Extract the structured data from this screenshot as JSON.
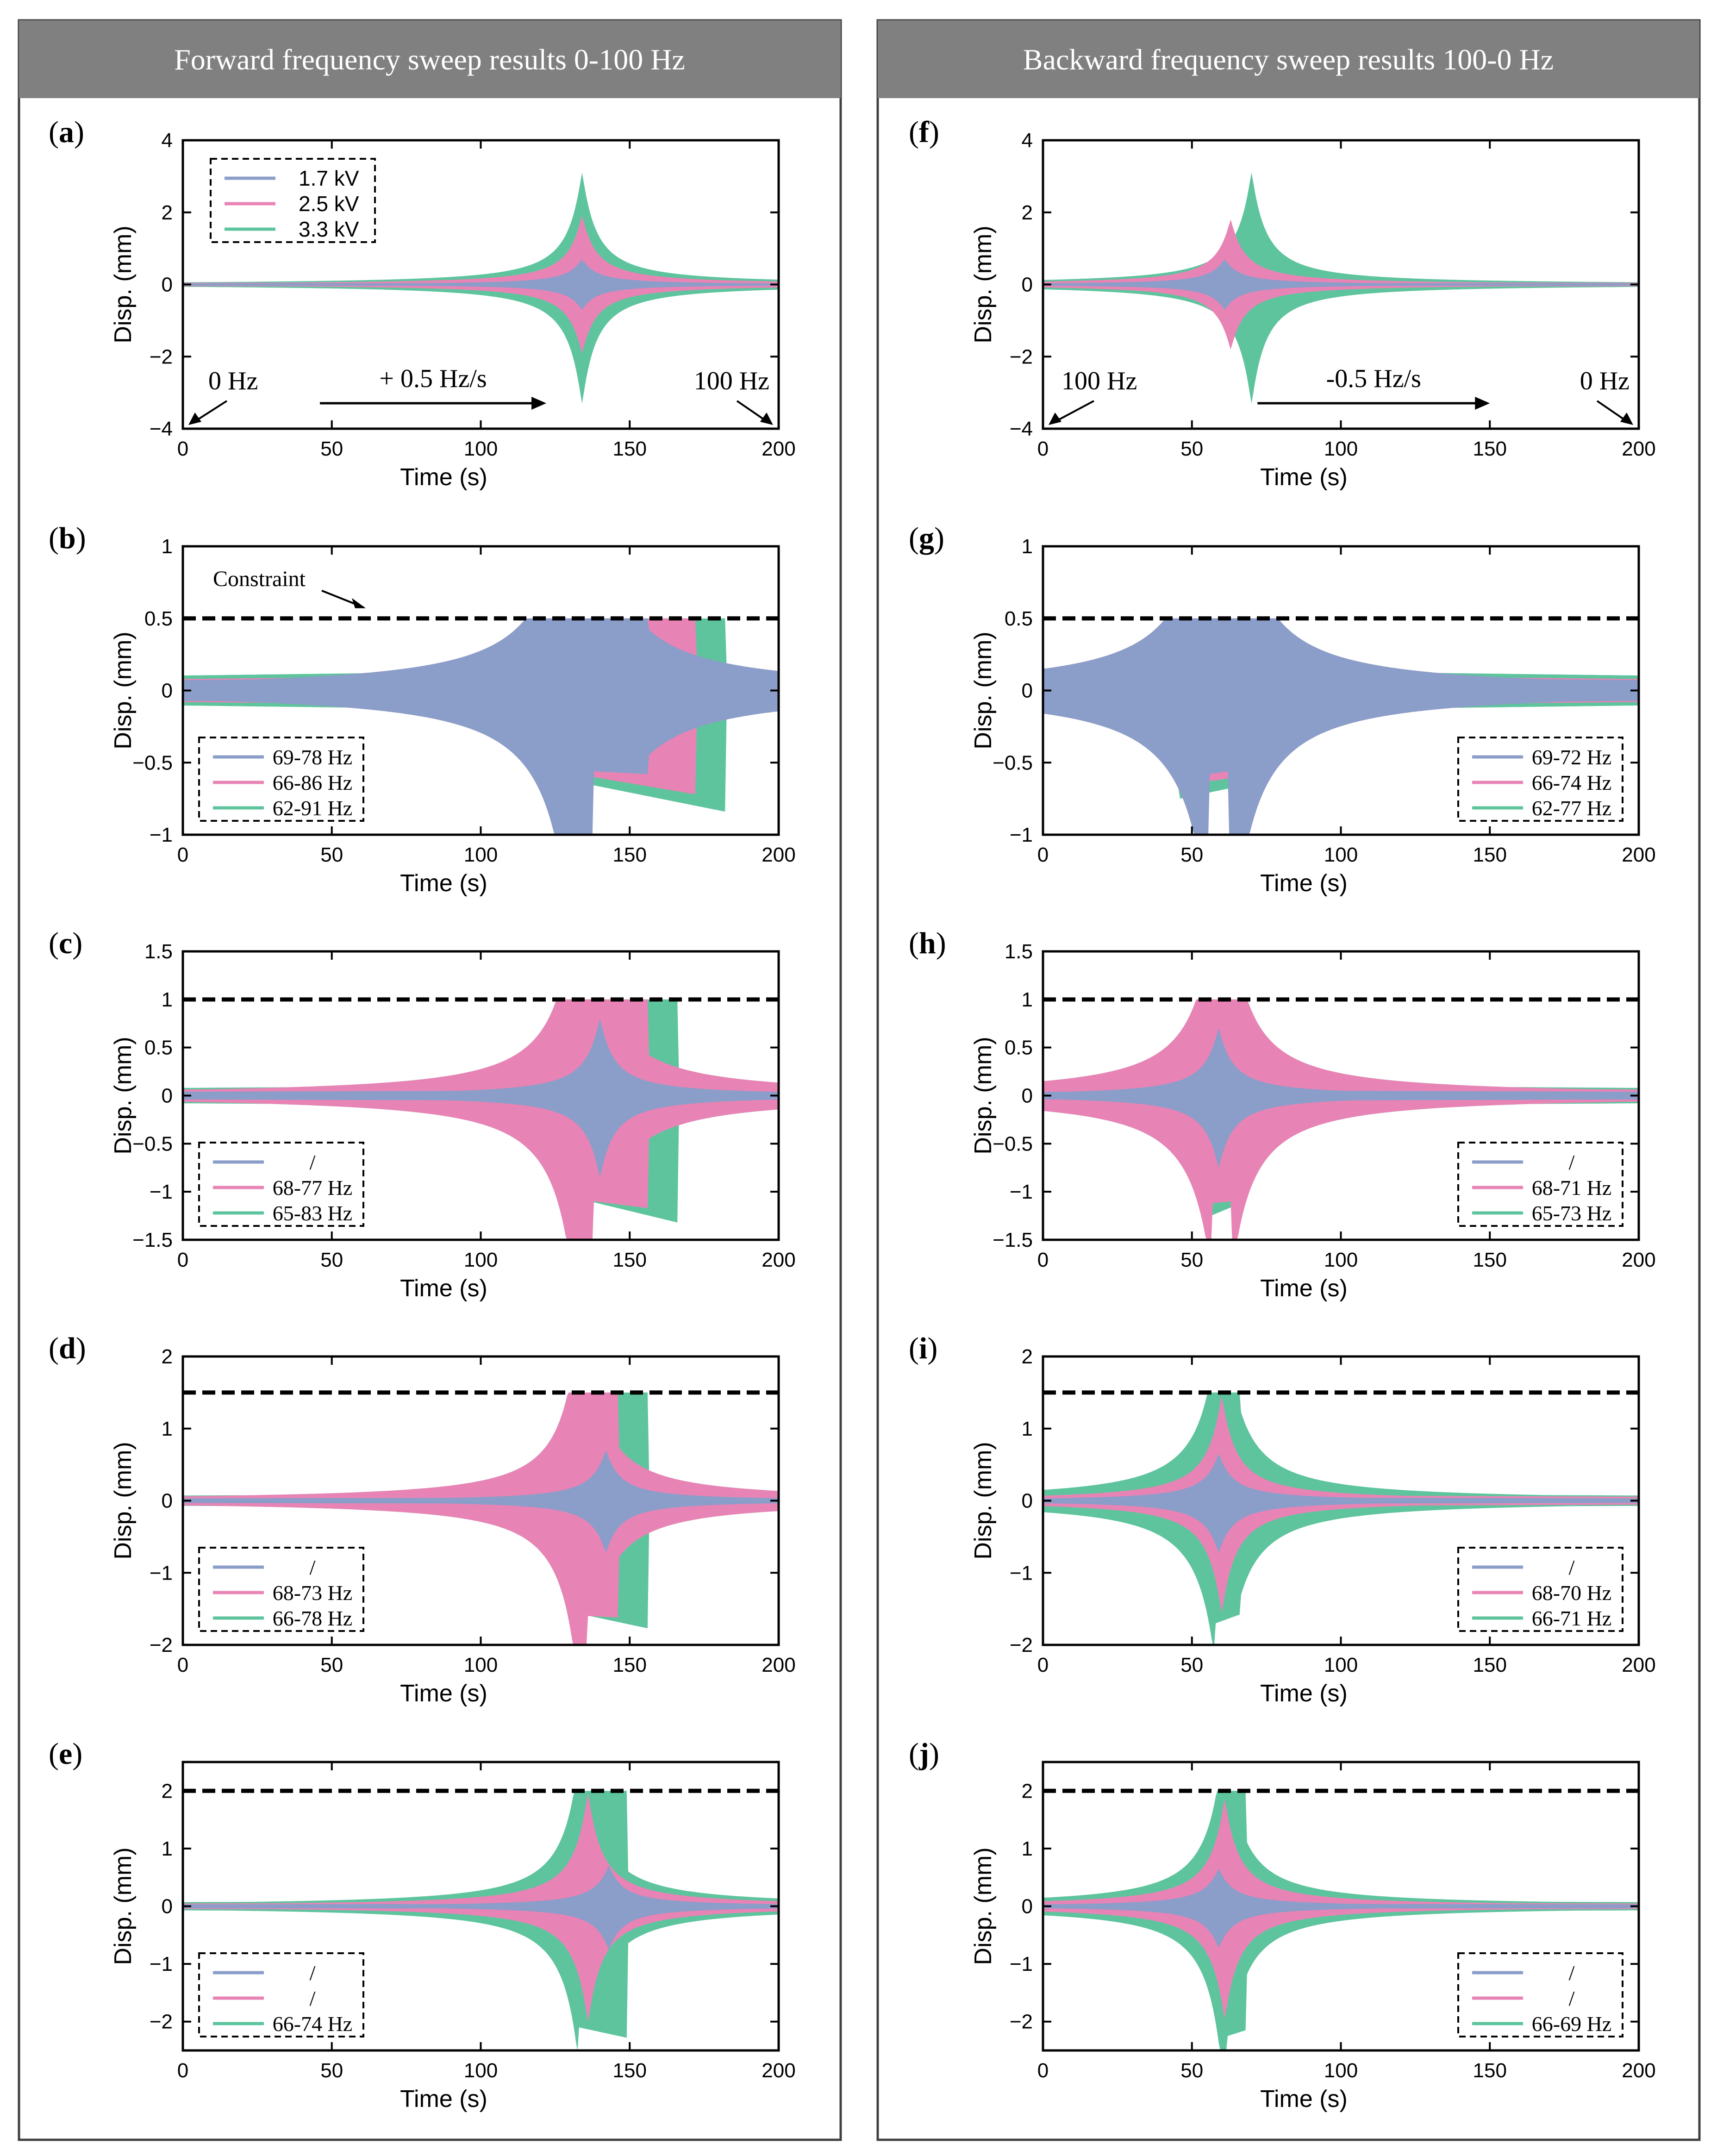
{
  "columns": [
    {
      "title": "Forward frequency sweep results 0-100 Hz"
    },
    {
      "title": "Backward frequency sweep results 100-0 Hz"
    }
  ],
  "colors": {
    "low": "#8b9dc9",
    "mid": "#e884b5",
    "high": "#5ec49d",
    "constraint": "#000000",
    "header_bg": "#808080",
    "panel_border": "#404040"
  },
  "chart_data": [
    {
      "panel": "(a)",
      "type": "area",
      "direction": "forward",
      "xlabel": "Time (s)",
      "ylabel": "Disp. (mm)",
      "xlim": [
        0,
        200
      ],
      "ylim": [
        -4,
        4
      ],
      "xticks": [
        0,
        50,
        100,
        150,
        200
      ],
      "yticks": [
        -4,
        -2,
        0,
        2,
        4
      ],
      "constraint": null,
      "constraint_label": null,
      "legend_position": "top-left",
      "series": [
        {
          "name": "1.7 kV",
          "color": "low",
          "peak_time": 134,
          "peak_pos": 0.7,
          "peak_neg": -0.7,
          "base": 0.04,
          "cut_pos": null,
          "cut_neg": null
        },
        {
          "name": "2.5 kV",
          "color": "mid",
          "peak_time": 134,
          "peak_pos": 1.9,
          "peak_neg": -1.9,
          "base": 0.06,
          "cut_pos": null,
          "cut_neg": null
        },
        {
          "name": "3.3 kV",
          "color": "high",
          "peak_time": 134,
          "peak_pos": 3.1,
          "peak_neg": -3.3,
          "base": 0.08,
          "cut_pos": null,
          "cut_neg": null
        }
      ],
      "annotations": [
        {
          "text": "0 Hz",
          "arrow": "down-left"
        },
        {
          "text": "+ 0.5 Hz/s",
          "arrow": "right"
        },
        {
          "text": "100 Hz",
          "arrow": "down-right"
        }
      ]
    },
    {
      "panel": "(b)",
      "type": "area",
      "direction": "forward",
      "xlabel": "Time (s)",
      "ylabel": "Disp. (mm)",
      "xlim": [
        0,
        200
      ],
      "ylim": [
        -1,
        1
      ],
      "xticks": [
        0,
        50,
        100,
        150,
        200
      ],
      "yticks": [
        -1,
        -0.5,
        0,
        0.5,
        1
      ],
      "constraint": 0.5,
      "constraint_label": "Constraint",
      "legend_position": "bottom-left",
      "series": [
        {
          "name": "69-78 Hz",
          "color": "low",
          "peak_time": 134,
          "peak_pos": 3.1,
          "peak_neg": -3.3,
          "base": 0.09,
          "cut_pos": [
            138,
            156
          ],
          "cut_neg": [
            138,
            156
          ],
          "neg_start": -0.56,
          "neg_end": -0.58
        },
        {
          "name": "66-86 Hz",
          "color": "mid",
          "peak_time": 134,
          "peak_pos": 3.1,
          "peak_neg": -3.3,
          "base": 0.1,
          "cut_pos": [
            132,
            172
          ],
          "cut_neg": [
            132,
            172
          ],
          "neg_start": -0.58,
          "neg_end": -0.72
        },
        {
          "name": "62-91 Hz",
          "color": "high",
          "peak_time": 134,
          "peak_pos": 3.1,
          "peak_neg": -3.3,
          "base": 0.13,
          "cut_pos": [
            124,
            182
          ],
          "cut_neg": [
            124,
            182
          ],
          "neg_start": -0.6,
          "neg_end": -0.84
        }
      ]
    },
    {
      "panel": "(c)",
      "type": "area",
      "direction": "forward",
      "xlabel": "Time (s)",
      "ylabel": "Disp. (mm)",
      "xlim": [
        0,
        200
      ],
      "ylim": [
        -1.5,
        1.5
      ],
      "xticks": [
        0,
        50,
        100,
        150,
        200
      ],
      "yticks": [
        -1.5,
        -1,
        -0.5,
        0,
        0.5,
        1,
        1.5
      ],
      "constraint": 1,
      "constraint_label": null,
      "legend_position": "bottom-left",
      "series": [
        {
          "name": "/",
          "color": "low",
          "peak_time": 140,
          "peak_pos": 0.8,
          "peak_neg": -0.85,
          "base": 0.05,
          "cut_pos": null,
          "cut_neg": null
        },
        {
          "name": "68-77 Hz",
          "color": "mid",
          "peak_time": 134,
          "peak_pos": 3.1,
          "peak_neg": -3.3,
          "base": 0.08,
          "cut_pos": [
            138,
            156
          ],
          "cut_neg": [
            138,
            156
          ],
          "neg_start": -1.1,
          "neg_end": -1.17
        },
        {
          "name": "65-83 Hz",
          "color": "high",
          "peak_time": 134,
          "peak_pos": 3.1,
          "peak_neg": -3.3,
          "base": 0.1,
          "cut_pos": [
            130,
            166
          ],
          "cut_neg": [
            130,
            166
          ],
          "neg_start": -1.05,
          "neg_end": -1.32
        }
      ]
    },
    {
      "panel": "(d)",
      "type": "area",
      "direction": "forward",
      "xlabel": "Time (s)",
      "ylabel": "Disp. (mm)",
      "xlim": [
        0,
        200
      ],
      "ylim": [
        -2,
        2
      ],
      "xticks": [
        0,
        50,
        100,
        150,
        200
      ],
      "yticks": [
        -2,
        -1,
        0,
        1,
        2
      ],
      "constraint": 1.5,
      "constraint_label": null,
      "legend_position": "bottom-left",
      "series": [
        {
          "name": "/",
          "color": "low",
          "peak_time": 142,
          "peak_pos": 0.7,
          "peak_neg": -0.72,
          "base": 0.04,
          "cut_pos": null,
          "cut_neg": null
        },
        {
          "name": "68-73 Hz",
          "color": "mid",
          "peak_time": 134,
          "peak_pos": 3.1,
          "peak_neg": -3.3,
          "base": 0.07,
          "cut_pos": [
            136,
            146
          ],
          "cut_neg": [
            136,
            146
          ],
          "neg_start": -1.6,
          "neg_end": -1.62
        },
        {
          "name": "66-78 Hz",
          "color": "high",
          "peak_time": 134,
          "peak_pos": 3.1,
          "peak_neg": -3.3,
          "base": 0.09,
          "cut_pos": [
            131,
            156
          ],
          "cut_neg": [
            131,
            156
          ],
          "neg_start": -1.55,
          "neg_end": -1.77
        }
      ]
    },
    {
      "panel": "(e)",
      "type": "area",
      "direction": "forward",
      "xlabel": "Time (s)",
      "ylabel": "Disp. (mm)",
      "xlim": [
        0,
        200
      ],
      "ylim": [
        -2.5,
        2.5
      ],
      "xticks": [
        0,
        50,
        100,
        150,
        200
      ],
      "yticks": [
        -2,
        -1,
        0,
        1,
        2
      ],
      "constraint": 2,
      "constraint_label": null,
      "legend_position": "bottom-left",
      "series": [
        {
          "name": "/",
          "color": "low",
          "peak_time": 143,
          "peak_pos": 0.7,
          "peak_neg": -0.75,
          "base": 0.04,
          "cut_pos": null,
          "cut_neg": null
        },
        {
          "name": "/",
          "color": "mid",
          "peak_time": 136,
          "peak_pos": 1.95,
          "peak_neg": -2.0,
          "base": 0.06,
          "cut_pos": null,
          "cut_neg": null
        },
        {
          "name": "66-74 Hz",
          "color": "high",
          "peak_time": 134,
          "peak_pos": 3.1,
          "peak_neg": -3.3,
          "base": 0.09,
          "cut_pos": [
            133,
            149
          ],
          "cut_neg": [
            133,
            149
          ],
          "neg_start": -2.1,
          "neg_end": -2.28
        }
      ]
    },
    {
      "panel": "(f)",
      "type": "area",
      "direction": "backward",
      "xlabel": "Time (s)",
      "ylabel": "Disp. (mm)",
      "xlim": [
        0,
        200
      ],
      "ylim": [
        -4,
        4
      ],
      "xticks": [
        0,
        50,
        100,
        150,
        200
      ],
      "yticks": [
        -4,
        -2,
        0,
        2,
        4
      ],
      "constraint": null,
      "constraint_label": null,
      "legend_position": null,
      "series": [
        {
          "name": "1.7 kV",
          "color": "low",
          "peak_time": 61,
          "peak_pos": 0.7,
          "peak_neg": -0.7,
          "base": 0.04,
          "cut_pos": null,
          "cut_neg": null,
          "drop": 61
        },
        {
          "name": "2.5 kV",
          "color": "mid",
          "peak_time": 63,
          "peak_pos": 1.8,
          "peak_neg": -1.8,
          "base": 0.06,
          "cut_pos": null,
          "cut_neg": null,
          "drop": 63
        },
        {
          "name": "3.3 kV",
          "color": "high",
          "peak_time": 70,
          "peak_pos": 3.1,
          "peak_neg": -3.3,
          "base": 0.08,
          "cut_pos": null,
          "cut_neg": null,
          "drop": 70
        }
      ],
      "annotations": [
        {
          "text": "100 Hz",
          "arrow": "down-left"
        },
        {
          "text": "-0.5 Hz/s",
          "arrow": "right"
        },
        {
          "text": "0 Hz",
          "arrow": "down-right"
        }
      ]
    },
    {
      "panel": "(g)",
      "type": "area",
      "direction": "backward",
      "xlabel": "Time (s)",
      "ylabel": "Disp. (mm)",
      "xlim": [
        0,
        200
      ],
      "ylim": [
        -1,
        1
      ],
      "xticks": [
        0,
        50,
        100,
        150,
        200
      ],
      "yticks": [
        -1,
        -0.5,
        0,
        0.5,
        1
      ],
      "constraint": 0.5,
      "constraint_label": null,
      "legend_position": "bottom-right",
      "series": [
        {
          "name": "69-72 Hz",
          "color": "low",
          "peak_time": 60,
          "peak_pos": 3.1,
          "peak_neg": -3.3,
          "base": 0.09,
          "cut_pos": [
            56,
            62
          ],
          "cut_neg": [
            56,
            62
          ],
          "neg_start": -0.58,
          "neg_end": -0.56
        },
        {
          "name": "66-74 Hz",
          "color": "mid",
          "peak_time": 60,
          "peak_pos": 3.1,
          "peak_neg": -3.3,
          "base": 0.1,
          "cut_pos": [
            52,
            66
          ],
          "cut_neg": [
            52,
            66
          ],
          "neg_start": -0.64,
          "neg_end": -0.6
        },
        {
          "name": "62-77 Hz",
          "color": "high",
          "peak_time": 60,
          "peak_pos": 3.1,
          "peak_neg": -3.3,
          "base": 0.13,
          "cut_pos": [
            46,
            76
          ],
          "cut_neg": [
            46,
            76
          ],
          "neg_start": -0.75,
          "neg_end": -0.62
        }
      ]
    },
    {
      "panel": "(h)",
      "type": "area",
      "direction": "backward",
      "xlabel": "Time (s)",
      "ylabel": "Disp. (mm)",
      "xlim": [
        0,
        200
      ],
      "ylim": [
        -1.5,
        1.5
      ],
      "xticks": [
        0,
        50,
        100,
        150,
        200
      ],
      "yticks": [
        -1.5,
        -1,
        -0.5,
        0,
        0.5,
        1,
        1.5
      ],
      "constraint": 1,
      "constraint_label": null,
      "legend_position": "bottom-right",
      "series": [
        {
          "name": "/",
          "color": "low",
          "peak_time": 59,
          "peak_pos": 0.7,
          "peak_neg": -0.75,
          "base": 0.05,
          "cut_pos": null,
          "cut_neg": null
        },
        {
          "name": "68-71 Hz",
          "color": "mid",
          "peak_time": 60,
          "peak_pos": 3.1,
          "peak_neg": -3.3,
          "base": 0.08,
          "cut_pos": [
            57,
            63
          ],
          "cut_neg": [
            57,
            63
          ],
          "neg_start": -1.12,
          "neg_end": -1.1
        },
        {
          "name": "65-73 Hz",
          "color": "high",
          "peak_time": 60,
          "peak_pos": 3.1,
          "peak_neg": -3.3,
          "base": 0.1,
          "cut_pos": [
            54,
            68
          ],
          "cut_neg": [
            54,
            68
          ],
          "neg_start": -1.28,
          "neg_end": -1.1
        }
      ]
    },
    {
      "panel": "(i)",
      "type": "area",
      "direction": "backward",
      "xlabel": "Time (s)",
      "ylabel": "Disp. (mm)",
      "xlim": [
        0,
        200
      ],
      "ylim": [
        -2,
        2
      ],
      "xticks": [
        0,
        50,
        100,
        150,
        200
      ],
      "yticks": [
        -2,
        -1,
        0,
        1,
        2
      ],
      "constraint": 1.5,
      "constraint_label": null,
      "legend_position": "bottom-right",
      "series": [
        {
          "name": "/",
          "color": "low",
          "peak_time": 59,
          "peak_pos": 0.65,
          "peak_neg": -0.72,
          "base": 0.04,
          "cut_pos": null,
          "cut_neg": null
        },
        {
          "name": "68-70 Hz",
          "color": "mid",
          "peak_time": 60,
          "peak_pos": 1.45,
          "peak_neg": -1.55,
          "base": 0.07,
          "cut_pos": null,
          "cut_neg": null
        },
        {
          "name": "66-71 Hz",
          "color": "high",
          "peak_time": 60,
          "peak_pos": 3.1,
          "peak_neg": -3.3,
          "base": 0.09,
          "cut_pos": [
            58,
            66
          ],
          "cut_neg": [
            58,
            66
          ],
          "neg_start": -1.7,
          "neg_end": -1.58
        }
      ]
    },
    {
      "panel": "(j)",
      "type": "area",
      "direction": "backward",
      "xlabel": "Time (s)",
      "ylabel": "Disp. (mm)",
      "xlim": [
        0,
        200
      ],
      "ylim": [
        -2.5,
        2.5
      ],
      "xticks": [
        0,
        50,
        100,
        150,
        200
      ],
      "yticks": [
        -2,
        -1,
        0,
        1,
        2
      ],
      "constraint": 2,
      "constraint_label": null,
      "legend_position": "bottom-right",
      "series": [
        {
          "name": "/",
          "color": "low",
          "peak_time": 59,
          "peak_pos": 0.65,
          "peak_neg": -0.72,
          "base": 0.04,
          "cut_pos": null,
          "cut_neg": null
        },
        {
          "name": "/",
          "color": "mid",
          "peak_time": 61,
          "peak_pos": 1.85,
          "peak_neg": -1.95,
          "base": 0.06,
          "cut_pos": null,
          "cut_neg": null
        },
        {
          "name": "66-69 Hz",
          "color": "high",
          "peak_time": 61,
          "peak_pos": 3.1,
          "peak_neg": -3.3,
          "base": 0.09,
          "cut_pos": [
            62,
            68
          ],
          "cut_neg": [
            62,
            68
          ],
          "neg_start": -2.25,
          "neg_end": -2.15
        }
      ]
    }
  ]
}
